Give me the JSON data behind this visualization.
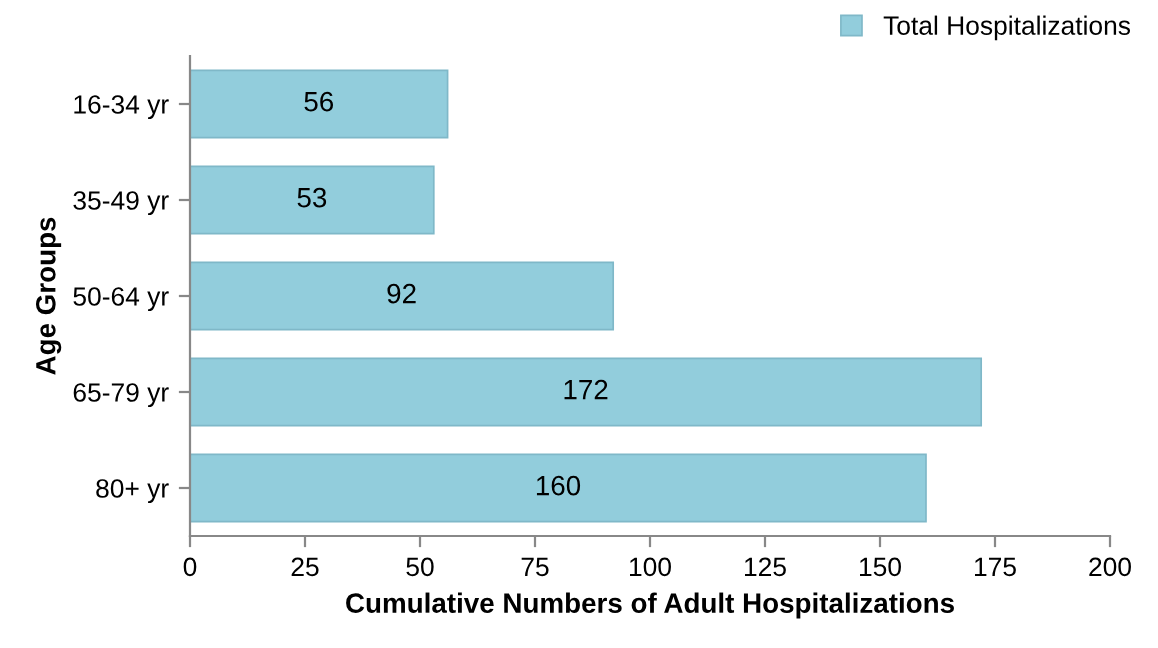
{
  "chart_data": {
    "type": "bar",
    "orientation": "horizontal",
    "xlabel": "Cumulative Numbers of Adult Hospitalizations",
    "ylabel": "Age Groups",
    "categories": [
      "16-34 yr",
      "35-49 yr",
      "50-64 yr",
      "65-79 yr",
      "80+ yr"
    ],
    "series": [
      {
        "name": "Total Hospitalizations",
        "color": "#92cddc",
        "values": [
          56,
          53,
          92,
          172,
          160
        ]
      }
    ],
    "xlim": [
      0,
      200
    ],
    "xticks": [
      0,
      25,
      50,
      75,
      100,
      125,
      150,
      175,
      200
    ],
    "data_labels": true,
    "legend": "top right",
    "grid": false
  }
}
